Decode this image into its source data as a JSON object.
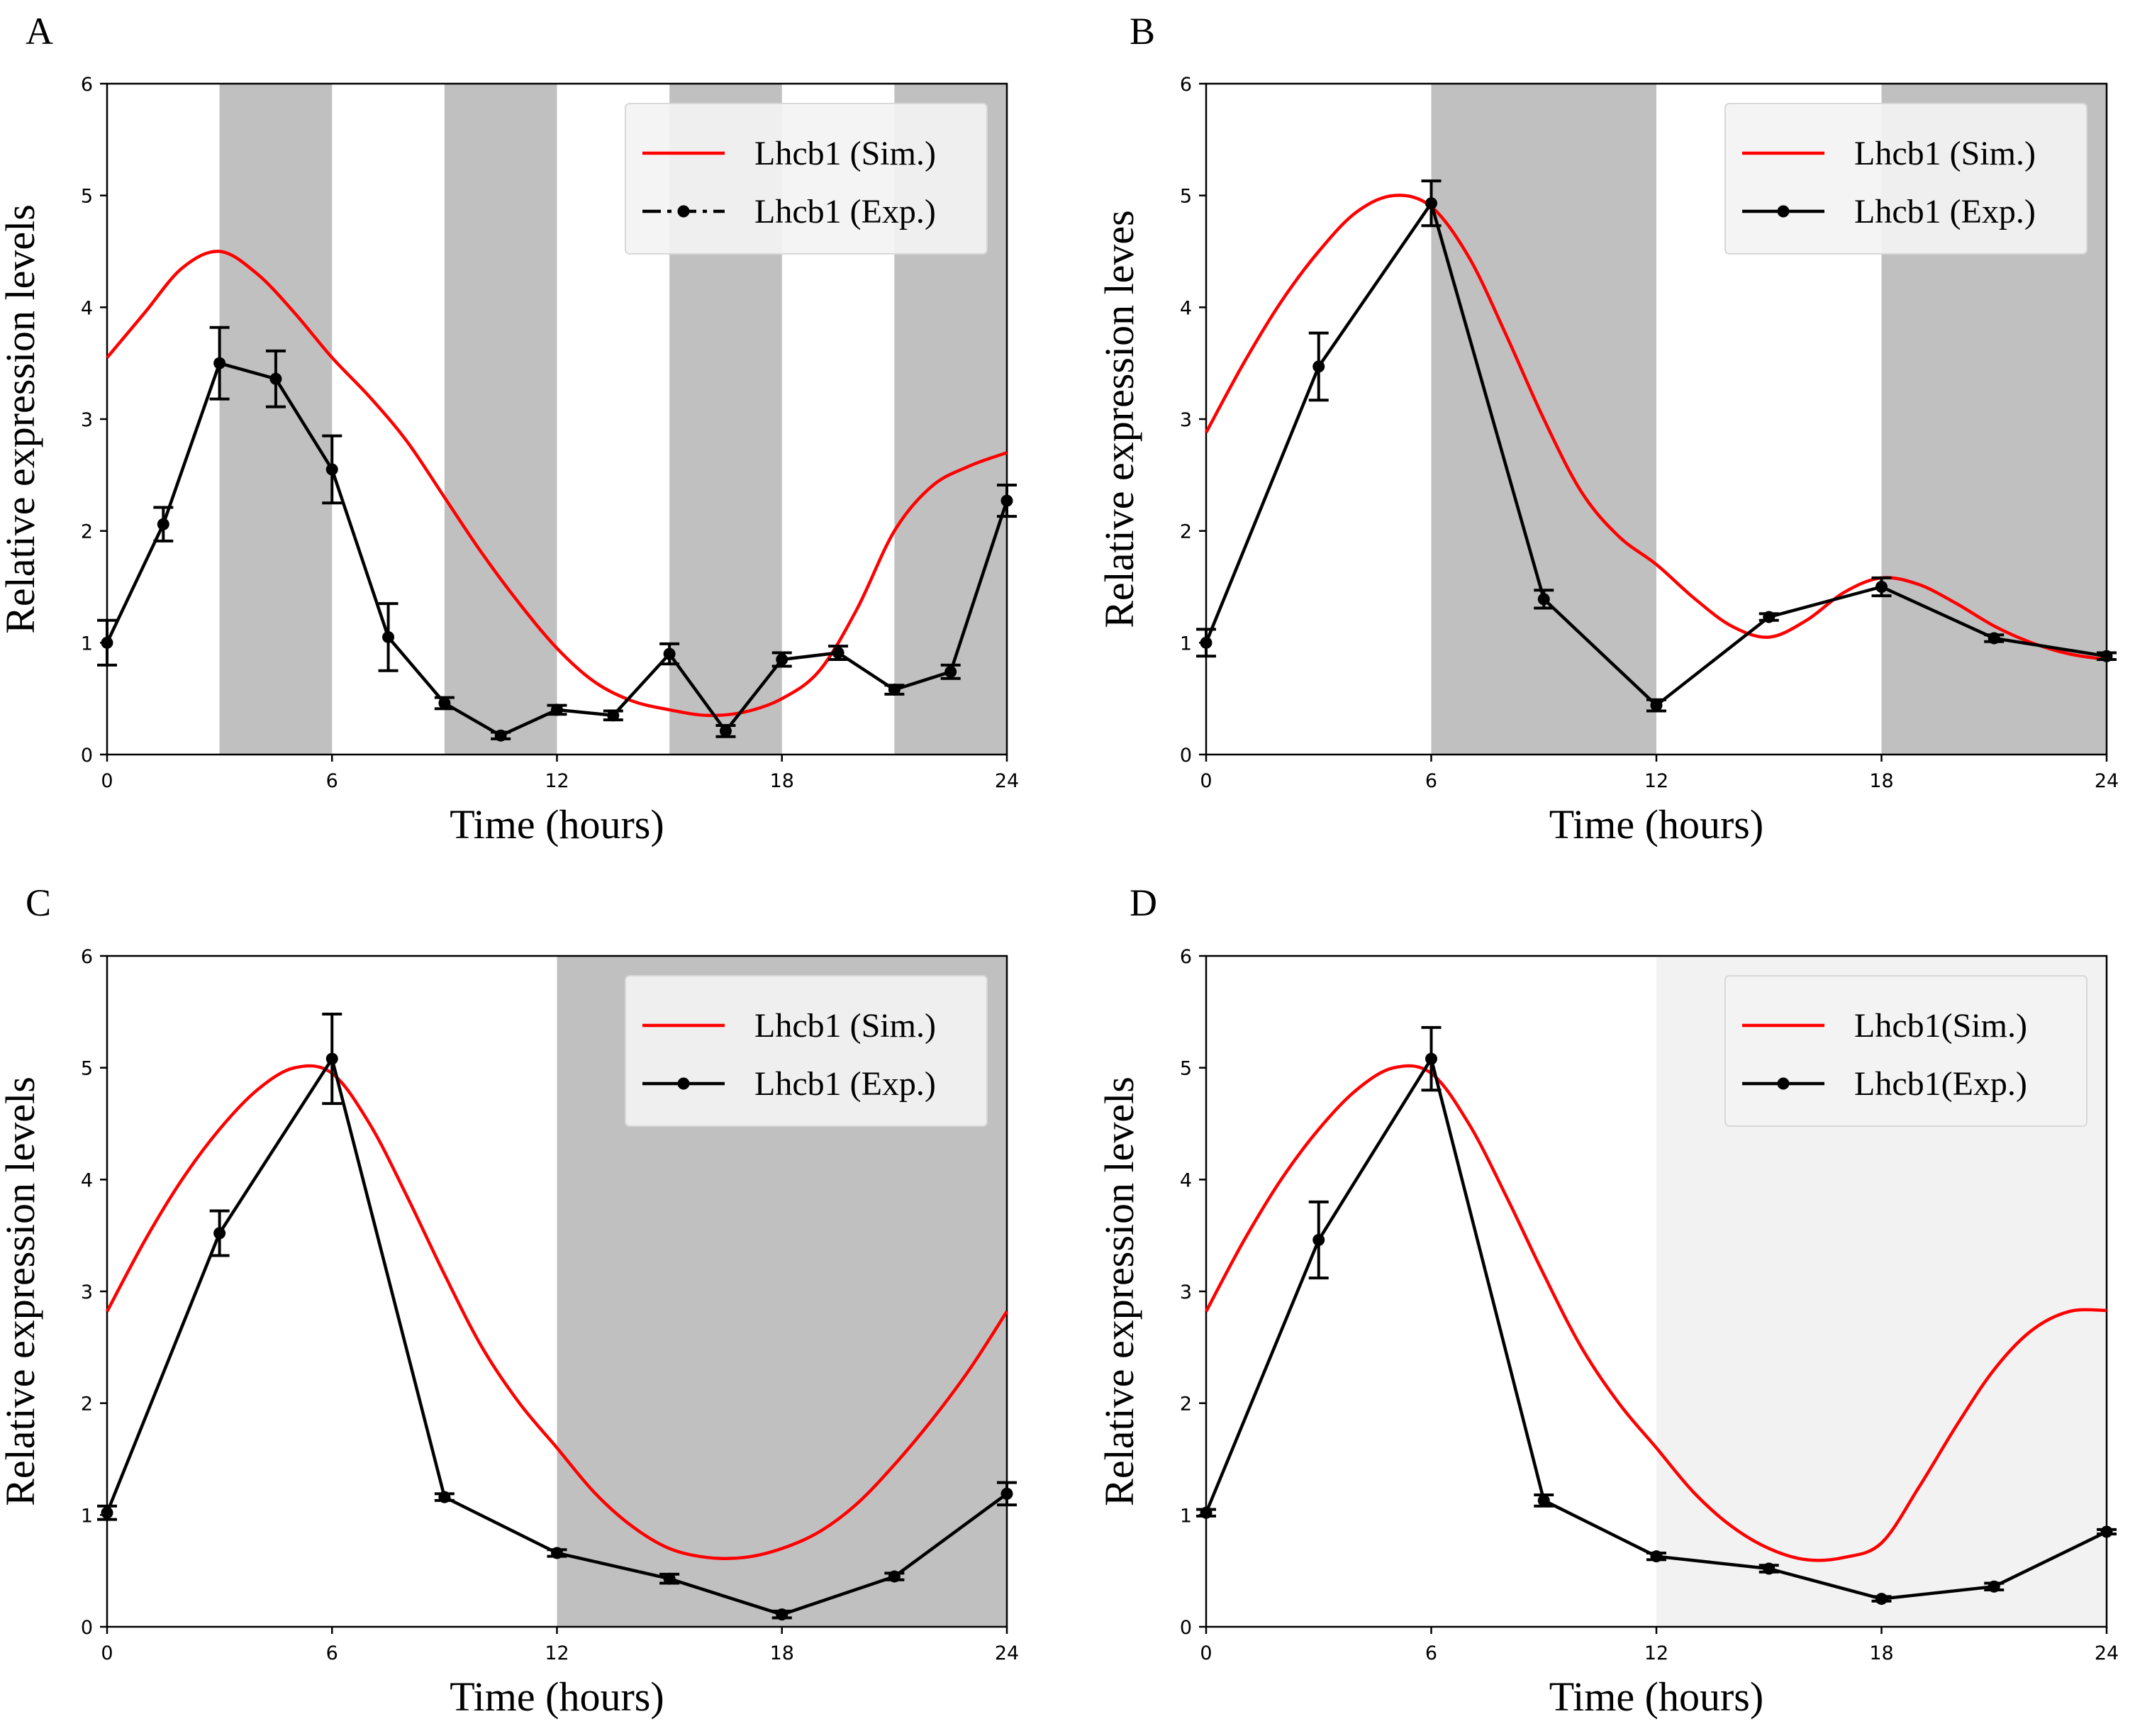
{
  "chart_data": [
    {
      "type": "line",
      "panel_label": "A",
      "xlabel": "Time (hours)",
      "ylabel": "Relative expression levels",
      "xlim": [
        0,
        24
      ],
      "ylim": [
        0,
        6
      ],
      "xticks": [
        "0",
        "6",
        "12",
        "18",
        "24"
      ],
      "yticks": [
        "0",
        "1",
        "2",
        "3",
        "4",
        "5",
        "6"
      ],
      "shaded_intervals": [
        [
          3,
          6
        ],
        [
          9,
          12
        ],
        [
          15,
          18
        ],
        [
          21,
          24
        ]
      ],
      "shade_color": "#c0c0c0",
      "legend": {
        "position": "top-right",
        "sim_label": "Lhcb1 (Sim.)",
        "exp_label": "Lhcb1 (Exp.)",
        "exp_style": "dashdot"
      },
      "series": [
        {
          "name": "Lhcb1 (Sim.)",
          "color": "#ff0000",
          "x": [
            0,
            1,
            2,
            3,
            4,
            5,
            6,
            7,
            8,
            9,
            10,
            11,
            12,
            13,
            14,
            15,
            16,
            17,
            18,
            19,
            20,
            21,
            22,
            23,
            24
          ],
          "values": [
            3.55,
            3.95,
            4.35,
            4.5,
            4.3,
            3.95,
            3.55,
            3.2,
            2.8,
            2.3,
            1.8,
            1.35,
            0.95,
            0.65,
            0.48,
            0.4,
            0.35,
            0.38,
            0.5,
            0.75,
            1.3,
            2.0,
            2.4,
            2.58,
            2.7
          ]
        },
        {
          "name": "Lhcb1 (Exp.)",
          "color": "#000000",
          "x": [
            0,
            1.5,
            3,
            4.5,
            6,
            7.5,
            9,
            10.5,
            12,
            13.5,
            15,
            16.5,
            18,
            19.5,
            21,
            22.5,
            24
          ],
          "values": [
            1.0,
            2.06,
            3.5,
            3.36,
            2.55,
            1.05,
            0.46,
            0.17,
            0.4,
            0.35,
            0.9,
            0.21,
            0.85,
            0.91,
            0.58,
            0.74,
            2.27
          ],
          "errors": [
            0.2,
            0.15,
            0.32,
            0.25,
            0.3,
            0.3,
            0.05,
            0.03,
            0.04,
            0.04,
            0.09,
            0.05,
            0.06,
            0.06,
            0.04,
            0.06,
            0.14
          ]
        }
      ]
    },
    {
      "type": "line",
      "panel_label": "B",
      "xlabel": "Time (hours)",
      "ylabel": "Relative expression leves",
      "xlim": [
        0,
        24
      ],
      "ylim": [
        0,
        6
      ],
      "xticks": [
        "0",
        "6",
        "12",
        "18",
        "24"
      ],
      "yticks": [
        "0",
        "1",
        "2",
        "3",
        "4",
        "5",
        "6"
      ],
      "shaded_intervals": [
        [
          6,
          12
        ],
        [
          18,
          24
        ]
      ],
      "shade_color": "#c0c0c0",
      "legend": {
        "position": "top-right",
        "sim_label": "Lhcb1 (Sim.)",
        "exp_label": "Lhcb1 (Exp.)",
        "exp_style": "solid"
      },
      "series": [
        {
          "name": "Lhcb1 (Sim.)",
          "color": "#ff0000",
          "x": [
            0,
            1,
            2,
            3,
            4,
            5,
            6,
            7,
            8,
            9,
            10,
            11,
            12,
            13,
            14,
            15,
            16,
            17,
            18,
            19,
            20,
            21,
            22,
            23,
            24
          ],
          "values": [
            2.88,
            3.5,
            4.05,
            4.5,
            4.85,
            5.0,
            4.9,
            4.45,
            3.75,
            3.0,
            2.35,
            1.95,
            1.7,
            1.4,
            1.15,
            1.05,
            1.2,
            1.45,
            1.58,
            1.52,
            1.35,
            1.15,
            1.0,
            0.9,
            0.85
          ]
        },
        {
          "name": "Lhcb1 (Exp.)",
          "color": "#000000",
          "x": [
            0,
            3,
            6,
            9,
            12,
            15,
            18,
            21,
            24
          ],
          "values": [
            1.0,
            3.47,
            4.93,
            1.39,
            0.44,
            1.23,
            1.5,
            1.04,
            0.88
          ],
          "errors": [
            0.12,
            0.3,
            0.2,
            0.08,
            0.05,
            0.03,
            0.08,
            0.03,
            0.03
          ]
        }
      ]
    },
    {
      "type": "line",
      "panel_label": "C",
      "xlabel": "Time (hours)",
      "ylabel": "Relative expression levels",
      "xlim": [
        0,
        24
      ],
      "ylim": [
        0,
        6
      ],
      "xticks": [
        "0",
        "6",
        "12",
        "18",
        "24"
      ],
      "yticks": [
        "0",
        "1",
        "2",
        "3",
        "4",
        "5",
        "6"
      ],
      "shaded_intervals": [
        [
          12,
          24
        ]
      ],
      "shade_color": "#c0c0c0",
      "legend": {
        "position": "top-right",
        "sim_label": "Lhcb1 (Sim.)",
        "exp_label": "Lhcb1 (Exp.)",
        "exp_style": "solid"
      },
      "series": [
        {
          "name": "Lhcb1 (Sim.)",
          "color": "#ff0000",
          "x": [
            0,
            1,
            2,
            3,
            4,
            5,
            6,
            7,
            8,
            9,
            10,
            11,
            12,
            13,
            14,
            15,
            16,
            17,
            18,
            19,
            20,
            21,
            22,
            23,
            24
          ],
          "values": [
            2.82,
            3.45,
            4.0,
            4.45,
            4.8,
            5.0,
            4.95,
            4.5,
            3.85,
            3.15,
            2.5,
            2.0,
            1.6,
            1.2,
            0.9,
            0.7,
            0.62,
            0.62,
            0.7,
            0.85,
            1.1,
            1.45,
            1.85,
            2.3,
            2.82
          ]
        },
        {
          "name": "Lhcb1 (Exp.)",
          "color": "#000000",
          "x": [
            0,
            3,
            6,
            9,
            12,
            15,
            18,
            21,
            24
          ],
          "values": [
            1.02,
            3.52,
            5.08,
            1.16,
            0.66,
            0.43,
            0.11,
            0.45,
            1.19
          ],
          "errors": [
            0.06,
            0.2,
            0.4,
            0.03,
            0.03,
            0.04,
            0.03,
            0.03,
            0.1
          ]
        }
      ]
    },
    {
      "type": "line",
      "panel_label": "D",
      "xlabel": "Time (hours)",
      "ylabel": "Relative expression levels",
      "xlim": [
        0,
        24
      ],
      "ylim": [
        0,
        6
      ],
      "xticks": [
        "0",
        "6",
        "12",
        "18",
        "24"
      ],
      "yticks": [
        "0",
        "1",
        "2",
        "3",
        "4",
        "5",
        "6"
      ],
      "shaded_intervals": [
        [
          12,
          24
        ]
      ],
      "shade_color": "#f2f2f2",
      "legend": {
        "position": "top-right",
        "sim_label": "Lhcb1(Sim.)",
        "exp_label": "Lhcb1(Exp.)",
        "exp_style": "solid"
      },
      "series": [
        {
          "name": "Lhcb1(Sim.)",
          "color": "#ff0000",
          "x": [
            0,
            1,
            2,
            3,
            4,
            5,
            6,
            7,
            8,
            9,
            10,
            11,
            12,
            13,
            14,
            15,
            16,
            17,
            18,
            19,
            20,
            21,
            22,
            23,
            24
          ],
          "values": [
            2.82,
            3.45,
            4.0,
            4.45,
            4.8,
            5.0,
            4.95,
            4.5,
            3.85,
            3.15,
            2.5,
            2.0,
            1.6,
            1.2,
            0.9,
            0.7,
            0.6,
            0.62,
            0.75,
            1.25,
            1.8,
            2.3,
            2.65,
            2.82,
            2.83
          ]
        },
        {
          "name": "Lhcb1(Exp.)",
          "color": "#000000",
          "x": [
            0,
            3,
            6,
            9,
            12,
            15,
            18,
            21,
            24
          ],
          "values": [
            1.02,
            3.46,
            5.08,
            1.13,
            0.63,
            0.52,
            0.25,
            0.36,
            0.85
          ],
          "errors": [
            0.03,
            0.34,
            0.28,
            0.05,
            0.03,
            0.03,
            0.02,
            0.03,
            0.02
          ]
        }
      ]
    }
  ]
}
